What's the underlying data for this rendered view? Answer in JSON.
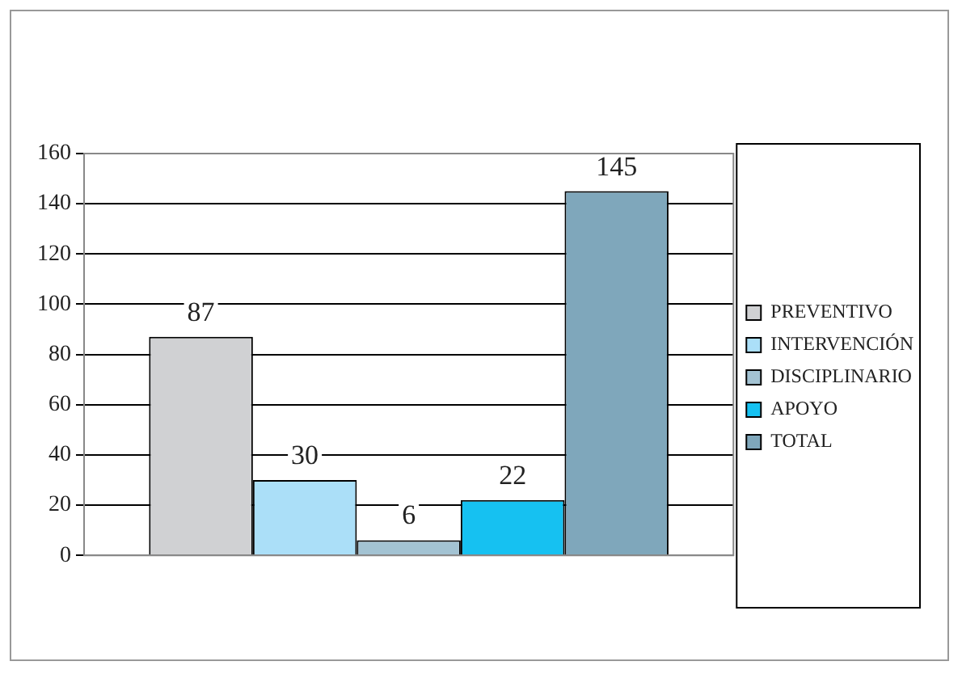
{
  "chart_data": {
    "type": "bar",
    "categories": [
      null
    ],
    "series": [
      {
        "name": "PREVENTIVO",
        "color": "#d0d1d3",
        "values": [
          87
        ]
      },
      {
        "name": "INTERVENCIÓN",
        "color": "#abdff8",
        "values": [
          30
        ]
      },
      {
        "name": "DISCIPLINARIO",
        "color": "#a3c3d3",
        "values": [
          6
        ]
      },
      {
        "name": "APOYO",
        "color": "#16c1f1",
        "values": [
          22
        ]
      },
      {
        "name": "TOTAL",
        "color": "#7fa7bb",
        "values": [
          145
        ]
      }
    ],
    "ylim": [
      0,
      160
    ],
    "yticks": [
      0,
      20,
      40,
      60,
      80,
      100,
      120,
      140,
      160
    ],
    "grid": "y",
    "legend": "right",
    "data_labels": true
  }
}
